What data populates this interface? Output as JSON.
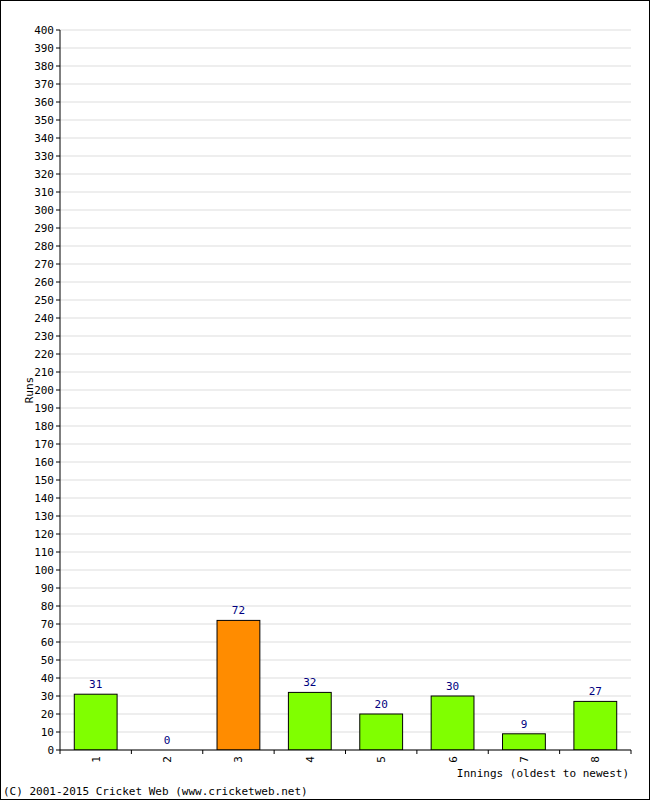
{
  "chart_data": {
    "type": "bar",
    "y_label": "Runs",
    "x_label": "Innings (oldest to newest)",
    "annotations": [
      "(C) 2001-2015 Cricket Web (www.cricketweb.net)"
    ],
    "categories": [
      "1",
      "2",
      "3",
      "4",
      "5",
      "6",
      "7",
      "8"
    ],
    "values": [
      31,
      0,
      72,
      32,
      20,
      30,
      9,
      27
    ],
    "colors": [
      "#80ff00",
      "#80ff00",
      "#ff8c00",
      "#80ff00",
      "#80ff00",
      "#80ff00",
      "#80ff00",
      "#80ff00"
    ],
    "ylim": [
      0,
      400
    ],
    "yticks": [
      0,
      10,
      20,
      30,
      40,
      50,
      60,
      70,
      80,
      90,
      100,
      110,
      120,
      130,
      140,
      150,
      160,
      170,
      180,
      190,
      200,
      210,
      220,
      230,
      240,
      250,
      260,
      270,
      280,
      290,
      300,
      310,
      320,
      330,
      340,
      350,
      360,
      370,
      380,
      390,
      400
    ],
    "grid": true,
    "data_labels": true
  }
}
